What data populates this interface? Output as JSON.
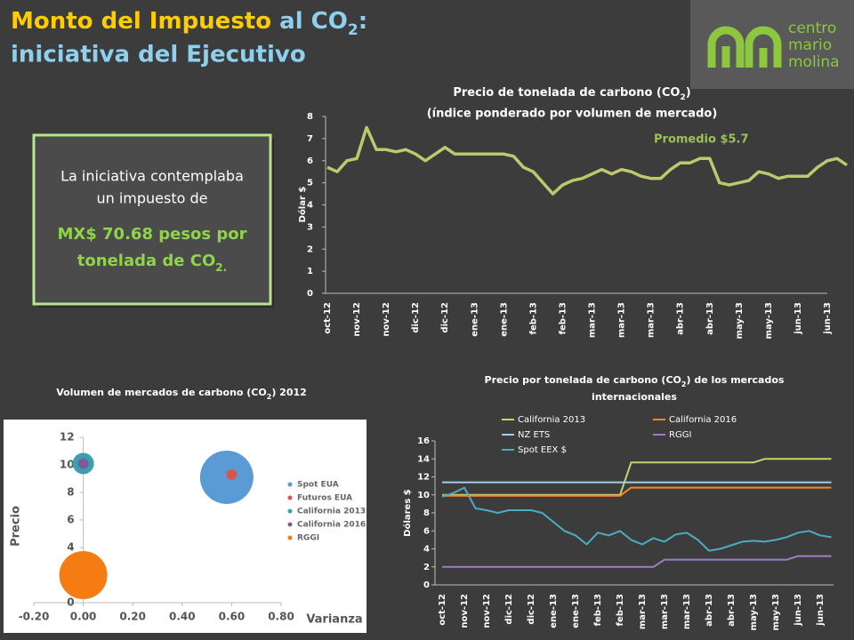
{
  "header": {
    "title_part1": "Monto del Impuesto",
    "title_part2": " al CO",
    "title_sub": "2",
    "title_part3": ":",
    "title_line2": "iniciativa del Ejecutivo"
  },
  "logo": {
    "lines": [
      "centro",
      "mario",
      "molina"
    ]
  },
  "callout": {
    "lines": [
      "La iniciativa contemplaba",
      "un impuesto de"
    ],
    "highlight_lines": [
      "MX$ 70.68 pesos por",
      "tonelada de CO"
    ],
    "highlight_sub": "2."
  },
  "chart_data": [
    {
      "type": "line",
      "title": "Precio de tonelada de carbono (CO",
      "title_sub": "2",
      "title_end": ")",
      "subtitle": "(índice ponderado por volumen de mercado)",
      "ylabel": "Dólar $",
      "annotation": "Promedio $5.7",
      "categories": [
        "oct-12",
        null,
        null,
        "nov-12",
        null,
        null,
        "nov-12",
        null,
        null,
        "dic-12",
        null,
        null,
        "dic-12",
        null,
        null,
        "ene-13",
        null,
        null,
        "ene-13",
        null,
        null,
        "feb-13",
        null,
        null,
        "feb-13",
        null,
        null,
        "mar-13",
        null,
        null,
        "mar-13",
        null,
        null,
        "mar-13",
        null,
        null,
        "abr-13",
        null,
        null,
        "abr-13",
        null,
        null,
        "may-13",
        null,
        null,
        "may-13",
        null,
        null,
        "jun-13",
        null,
        null,
        "jun-13",
        null,
        null
      ],
      "color": "#bfc86c",
      "values": [
        5.7,
        5.5,
        6.0,
        6.1,
        7.5,
        6.5,
        6.5,
        6.4,
        6.5,
        6.3,
        6.0,
        6.3,
        6.6,
        6.3,
        6.3,
        6.3,
        6.3,
        6.3,
        6.3,
        6.2,
        5.7,
        5.5,
        5.0,
        4.5,
        4.9,
        5.1,
        5.2,
        5.4,
        5.6,
        5.4,
        5.6,
        5.5,
        5.3,
        5.2,
        5.2,
        5.6,
        5.9,
        5.9,
        6.1,
        6.1,
        5.0,
        4.9,
        5.0,
        5.1,
        5.5,
        5.4,
        5.2,
        5.3,
        5.3,
        5.3,
        5.7,
        6.0,
        6.1,
        5.8
      ],
      "ylim": [
        0,
        8
      ],
      "yticks": [
        0,
        1,
        2,
        3,
        4,
        5,
        6,
        7,
        8
      ]
    },
    {
      "type": "scatter",
      "title": "Volumen de mercados de carbono (CO",
      "title_sub": "2",
      "title_end": ") 2012",
      "xlabel": "Varianza",
      "ylabel": "Precio",
      "xlim": [
        -0.2,
        0.8
      ],
      "xticks": [
        {
          "value": -0.2,
          "label": "-0.20"
        },
        {
          "value": 0,
          "label": "0.00"
        },
        {
          "value": 0.2,
          "label": "0.20"
        },
        {
          "value": 0.4,
          "label": "0.40"
        },
        {
          "value": 0.6,
          "label": "0.60"
        },
        {
          "value": 0.8,
          "label": "0.80"
        }
      ],
      "ylim": [
        0,
        12
      ],
      "yticks": [
        0,
        2,
        4,
        6,
        8,
        10,
        12
      ],
      "series": [
        {
          "name": "Spot EUA",
          "color": "#5b9bd5",
          "x": [
            0.58
          ],
          "values": [
            9.1
          ],
          "sizes": [
            30
          ]
        },
        {
          "name": "Futuros EUA",
          "color": "#d9534f",
          "x": [
            0.6
          ],
          "values": [
            9.3
          ],
          "sizes": [
            6
          ]
        },
        {
          "name": "California 2013",
          "color": "#3a9fb0",
          "x": [
            0.0
          ],
          "values": [
            10.1
          ],
          "sizes": [
            12
          ]
        },
        {
          "name": "California 2016",
          "color": "#7a5c9a",
          "x": [
            0.0
          ],
          "values": [
            10.1
          ],
          "sizes": [
            6
          ]
        },
        {
          "name": "RGGI",
          "color": "#f57c13",
          "x": [
            0.0
          ],
          "values": [
            2.0
          ],
          "sizes": [
            27
          ]
        }
      ]
    },
    {
      "type": "line",
      "title": "Precio por tonelada de carbono (CO",
      "title_sub": "2",
      "title_end": ") de los mercados",
      "title_line2": "internacionales",
      "ylabel": "Dólares $",
      "categories": [
        "oct-12",
        null,
        "nov-12",
        null,
        "nov-12",
        null,
        "dic-12",
        null,
        "dic-12",
        null,
        "ene-13",
        null,
        "ene-13",
        null,
        "feb-13",
        null,
        "feb-13",
        null,
        "mar-13",
        null,
        "mar-13",
        null,
        "mar-13",
        null,
        "abr-13",
        null,
        "abr-13",
        null,
        "may-13",
        null,
        "may-13",
        null,
        "jun-13",
        null,
        "jun-13",
        null
      ],
      "ylim": [
        0,
        16
      ],
      "yticks": [
        0,
        2,
        4,
        6,
        8,
        10,
        12,
        14,
        16
      ],
      "series": [
        {
          "name": "California 2013",
          "color": "#c3d66b",
          "values": [
            10,
            10,
            10,
            10,
            10,
            10,
            10,
            10,
            10,
            10,
            10,
            10,
            10,
            10,
            10,
            10,
            10,
            13.6,
            13.6,
            13.6,
            13.6,
            13.6,
            13.6,
            13.6,
            13.6,
            13.6,
            13.6,
            13.6,
            13.6,
            14.0,
            14.0,
            14.0,
            14.0,
            14.0,
            14.0,
            14.0
          ]
        },
        {
          "name": "California 2016",
          "color": "#f7862a",
          "values": [
            9.9,
            9.9,
            9.9,
            9.9,
            9.9,
            9.9,
            9.9,
            9.9,
            9.9,
            9.9,
            9.9,
            9.9,
            9.9,
            9.9,
            9.9,
            9.9,
            9.9,
            10.8,
            10.8,
            10.8,
            10.8,
            10.8,
            10.8,
            10.8,
            10.8,
            10.8,
            10.8,
            10.8,
            10.8,
            10.8,
            10.8,
            10.8,
            10.8,
            10.8,
            10.8,
            10.8
          ]
        },
        {
          "name": "NZ ETS",
          "color": "#9ed3e6",
          "values": [
            11.4,
            11.4,
            11.4,
            11.4,
            11.4,
            11.4,
            11.4,
            11.4,
            11.4,
            11.4,
            11.4,
            11.4,
            11.4,
            11.4,
            11.4,
            11.4,
            11.4,
            11.4,
            11.4,
            11.4,
            11.4,
            11.4,
            11.4,
            11.4,
            11.4,
            11.4,
            11.4,
            11.4,
            11.4,
            11.4,
            11.4,
            11.4,
            11.4,
            11.4,
            11.4,
            11.4
          ]
        },
        {
          "name": "RGGI",
          "color": "#9b7fc4",
          "values": [
            2.0,
            2.0,
            2.0,
            2.0,
            2.0,
            2.0,
            2.0,
            2.0,
            2.0,
            2.0,
            2.0,
            2.0,
            2.0,
            2.0,
            2.0,
            2.0,
            2.0,
            2.0,
            2.0,
            2.0,
            2.8,
            2.8,
            2.8,
            2.8,
            2.8,
            2.8,
            2.8,
            2.8,
            2.8,
            2.8,
            2.8,
            2.8,
            3.2,
            3.2,
            3.2,
            3.2
          ]
        },
        {
          "name": "Spot EEX $",
          "color": "#4bacc6",
          "values": [
            9.8,
            10.2,
            10.8,
            8.5,
            8.3,
            8.0,
            8.3,
            8.3,
            8.3,
            8.0,
            7.0,
            6.0,
            5.5,
            4.5,
            5.8,
            5.5,
            6.0,
            5.0,
            4.5,
            5.2,
            4.8,
            5.6,
            5.8,
            5.0,
            3.8,
            4.0,
            4.4,
            4.8,
            4.9,
            4.8,
            5.0,
            5.3,
            5.8,
            6.0,
            5.5,
            5.3
          ]
        }
      ]
    }
  ]
}
